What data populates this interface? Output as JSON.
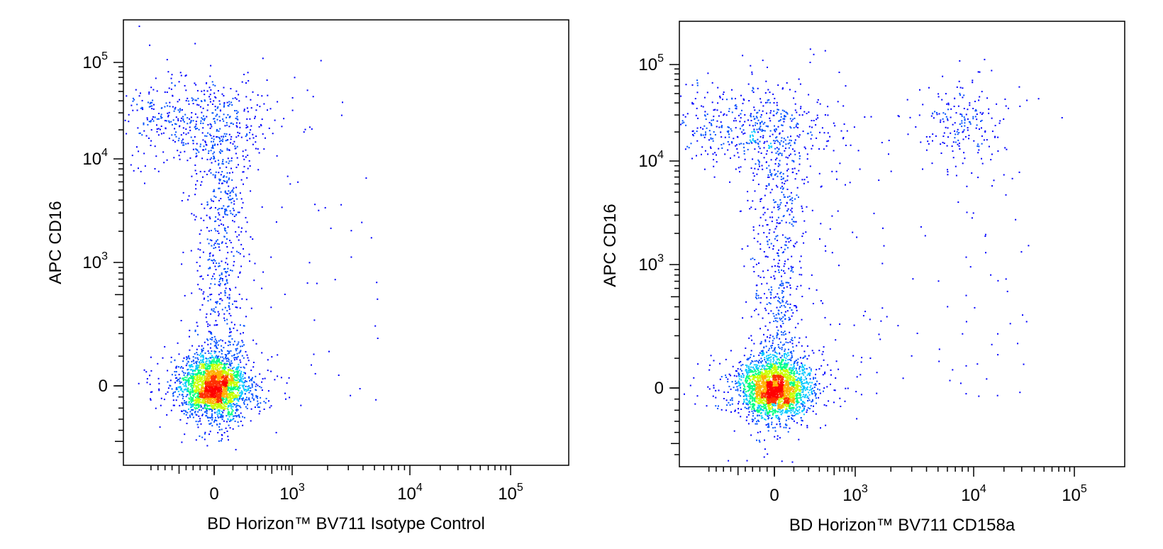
{
  "chart_data": [
    {
      "type": "scatter",
      "title": "",
      "xlabel": "BD Horizon™ BV711 Isotype Control",
      "ylabel": "APC CD16",
      "x_scale": "biexponential",
      "y_scale": "biexponential",
      "x_ticks": [
        {
          "value": 0,
          "label": "0"
        },
        {
          "value": 1000,
          "base": "10",
          "exp": "3"
        },
        {
          "value": 10000,
          "base": "10",
          "exp": "4"
        },
        {
          "value": 100000,
          "base": "10",
          "exp": "5"
        }
      ],
      "y_ticks": [
        {
          "value": 0,
          "label": "0"
        },
        {
          "value": 1000,
          "base": "10",
          "exp": "3"
        },
        {
          "value": 10000,
          "base": "10",
          "exp": "4"
        },
        {
          "value": 100000,
          "base": "10",
          "exp": "5"
        }
      ],
      "populations": [
        {
          "name": "CD16- cluster",
          "x_center": 0,
          "y_center": 0,
          "density": "high"
        },
        {
          "name": "CD16+ cluster",
          "x_center": 0,
          "y_center": 25000,
          "density": "medium"
        }
      ],
      "colormap": [
        "#0000ff",
        "#00c8ff",
        "#00ff80",
        "#c8ff00",
        "#ffb000",
        "#ff0000"
      ]
    },
    {
      "type": "scatter",
      "title": "",
      "xlabel": "BD Horizon™ BV711 CD158a",
      "ylabel": "APC CD16",
      "x_scale": "biexponential",
      "y_scale": "biexponential",
      "x_ticks": [
        {
          "value": 0,
          "label": "0"
        },
        {
          "value": 1000,
          "base": "10",
          "exp": "3"
        },
        {
          "value": 10000,
          "base": "10",
          "exp": "4"
        },
        {
          "value": 100000,
          "base": "10",
          "exp": "5"
        }
      ],
      "y_ticks": [
        {
          "value": 0,
          "label": "0"
        },
        {
          "value": 1000,
          "base": "10",
          "exp": "3"
        },
        {
          "value": 10000,
          "base": "10",
          "exp": "4"
        },
        {
          "value": 100000,
          "base": "10",
          "exp": "5"
        }
      ],
      "populations": [
        {
          "name": "CD16- cluster",
          "x_center": 0,
          "y_center": 0,
          "density": "high"
        },
        {
          "name": "CD16+ CD158a- cluster",
          "x_center": 0,
          "y_center": 25000,
          "density": "medium"
        },
        {
          "name": "CD16+ CD158a+ cluster",
          "x_center": 8000,
          "y_center": 25000,
          "density": "medium"
        }
      ],
      "colormap": [
        "#0000ff",
        "#00c8ff",
        "#00ff80",
        "#c8ff00",
        "#ffb000",
        "#ff0000"
      ]
    }
  ]
}
